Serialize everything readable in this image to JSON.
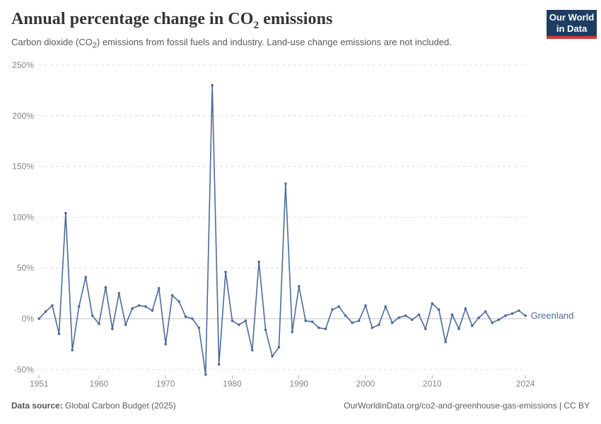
{
  "header": {
    "title_pre": "Annual percentage change in CO",
    "title_sub": "2",
    "title_post": " emissions",
    "subtitle_pre": "Carbon dioxide (CO",
    "subtitle_sub": "2",
    "subtitle_post": ") emissions from fossil fuels and industry. Land-use change emissions are not included.",
    "logo_line1": "Our World",
    "logo_line2": "in Data"
  },
  "chart_data": {
    "type": "line",
    "title": "Annual percentage change in CO₂ emissions",
    "xlabel": "",
    "ylabel": "",
    "grid": "horizontal-dashed",
    "zero_line": true,
    "legend_position": "end-of-line-label",
    "xlim": [
      1951,
      2024
    ],
    "ylim": [
      -60,
      255
    ],
    "x_ticks": [
      1951,
      1960,
      1970,
      1980,
      1990,
      2000,
      2010,
      2024
    ],
    "y_ticks": [
      250,
      200,
      150,
      100,
      50,
      0,
      -50
    ],
    "y_tick_suffix": "%",
    "series": [
      {
        "name": "Greenland",
        "color": "#4C6A9C",
        "x": [
          1951,
          1952,
          1953,
          1954,
          1955,
          1956,
          1957,
          1958,
          1959,
          1960,
          1961,
          1962,
          1963,
          1964,
          1965,
          1966,
          1967,
          1968,
          1969,
          1970,
          1971,
          1972,
          1973,
          1974,
          1975,
          1976,
          1977,
          1978,
          1979,
          1980,
          1981,
          1982,
          1983,
          1984,
          1985,
          1986,
          1987,
          1988,
          1989,
          1990,
          1991,
          1992,
          1993,
          1994,
          1995,
          1996,
          1997,
          1998,
          1999,
          2000,
          2001,
          2002,
          2003,
          2004,
          2005,
          2006,
          2007,
          2008,
          2009,
          2010,
          2011,
          2012,
          2013,
          2014,
          2015,
          2016,
          2017,
          2018,
          2019,
          2020,
          2021,
          2022,
          2023,
          2024
        ],
        "values": [
          0,
          7,
          13,
          -15,
          104,
          -31,
          12,
          41,
          3,
          -5,
          31,
          -10,
          25,
          -6,
          10,
          13,
          12,
          8,
          30,
          -25,
          23,
          17,
          2,
          0,
          -9,
          -55,
          230,
          -45,
          46,
          -2,
          -6,
          -2,
          -31,
          56,
          -11,
          -37,
          -28,
          133,
          -13,
          32,
          -2,
          -3,
          -9,
          -10,
          9,
          12,
          3,
          -4,
          -2,
          13,
          -9,
          -6,
          12,
          -4,
          1,
          3,
          -1,
          4,
          -10,
          15,
          9,
          -23,
          4,
          -10,
          10,
          -7,
          1,
          7,
          -4,
          -1,
          3,
          5,
          8,
          3
        ]
      }
    ],
    "end_label": "Greenland"
  },
  "footer": {
    "source_label": "Data source:",
    "source_value": " Global Carbon Budget (2025)",
    "link": "OurWorldinData.org/co2-and-greenhouse-gas-emissions | CC BY"
  },
  "colors": {
    "line": "#4C6A9C",
    "grid": "#dcdcdc",
    "zero_line": "#c0c0c0",
    "tick_mark": "#b5b5b5",
    "tick_text": "#858585",
    "logo_bg": "#1d3d63",
    "logo_stripe": "#cf3a3e"
  }
}
